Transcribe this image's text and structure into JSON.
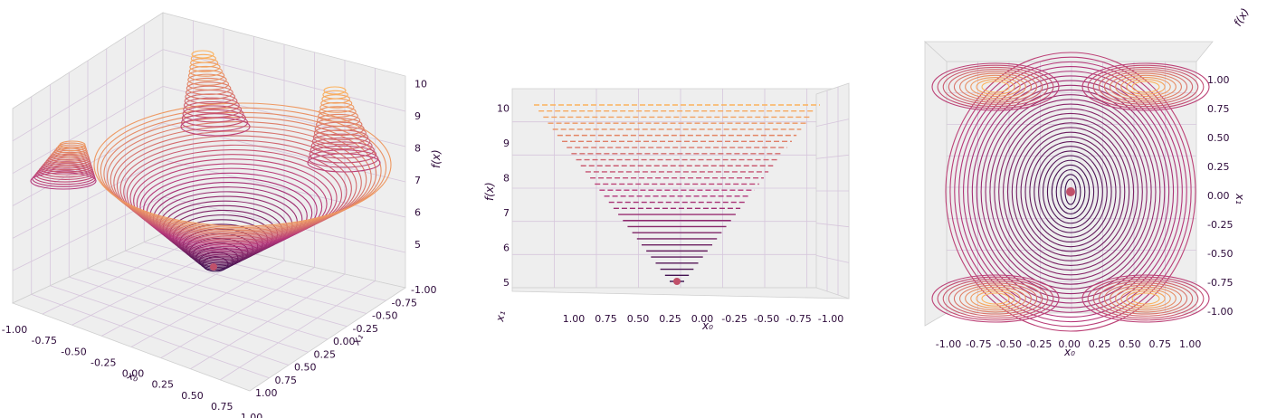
{
  "chart_data": [
    {
      "type": "surface-contour-3d",
      "view": "perspective",
      "x_ticks": [
        "-1.00",
        "-0.75",
        "-0.50",
        "-0.25",
        "0.00",
        "0.25",
        "0.50",
        "0.75",
        "1.00"
      ],
      "y_ticks": [
        "-1.00",
        "-0.75",
        "-0.50",
        "-0.25",
        "0.00",
        "0.25",
        "0.50",
        "0.75",
        "1.00"
      ],
      "z_ticks": [
        "5",
        "6",
        "7",
        "8",
        "9",
        "10"
      ],
      "xlabel": "x₀",
      "ylabel": "x₁",
      "zlabel": "f(x)",
      "zlim": [
        4.6,
        10.2
      ],
      "minimum": {
        "x0": 0.0,
        "x1": 0.0,
        "f": 4.8
      }
    },
    {
      "type": "surface-contour-3d",
      "view": "front",
      "x_ticks": [
        "1.00",
        "0.75",
        "0.50",
        "0.25",
        "0.00",
        "-0.25",
        "-0.50",
        "-0.75",
        "-1.00"
      ],
      "z_ticks": [
        "5",
        "6",
        "7",
        "8",
        "9",
        "10"
      ],
      "xlabel": "x₀",
      "ylabel": "x₁",
      "zlabel": "f(x)",
      "zlim": [
        4.6,
        10.2
      ],
      "minimum": {
        "x0": 0.0,
        "x1": 0.0,
        "f": 4.8
      }
    },
    {
      "type": "contour-top-view",
      "view": "top",
      "x_ticks": [
        "-1.00",
        "-0.75",
        "-0.50",
        "-0.25",
        "0.00",
        "0.25",
        "0.50",
        "0.75",
        "1.00"
      ],
      "y_ticks": [
        "1.00",
        "0.75",
        "0.50",
        "0.25",
        "0.00",
        "-0.25",
        "-0.50",
        "-0.75",
        "-1.00"
      ],
      "xlabel": "x₀",
      "ylabel": "x₁",
      "zlabel": "f(x)",
      "minimum": {
        "x0": 0.0,
        "x1": 0.0
      }
    }
  ],
  "colors": {
    "low": "#3b0f4f",
    "mid": "#b5367a",
    "high": "#fcb25c",
    "pane": "#eeeeee",
    "grid": "#d6c6dc",
    "marker": "#c0506a"
  }
}
